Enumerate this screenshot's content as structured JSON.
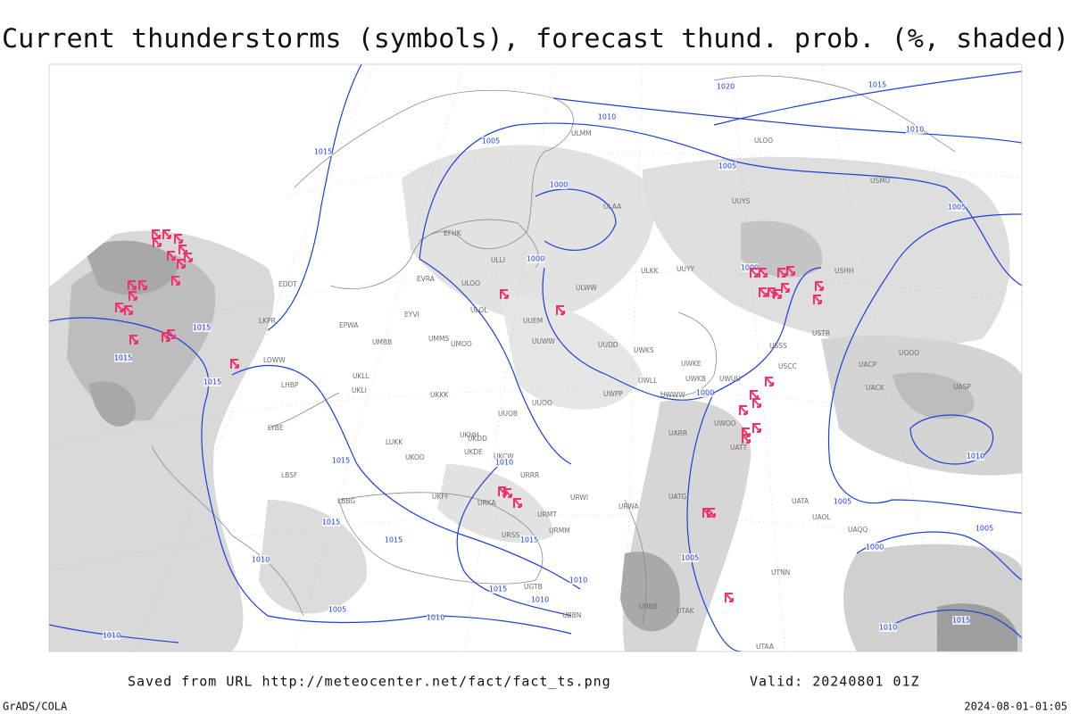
{
  "title": "Current thunderstorms (symbols), forecast thund. prob. (%, shaded)",
  "isobar_labels": [
    "1020",
    "1015",
    "1010",
    "1010",
    "1005",
    "1005",
    "1015",
    "1000",
    "1005",
    "1000",
    "1000",
    "1015",
    "1015",
    "1015",
    "1000",
    "1010",
    "1015",
    "1015",
    "1015",
    "1015",
    "1010",
    "1015",
    "1010",
    "1010",
    "1005",
    "1010",
    "1010",
    "1005",
    "1005",
    "1000",
    "1005",
    "1010",
    "1010",
    "1015"
  ],
  "stations": [
    "ULMM",
    "ULOO",
    "ULAA",
    "UUYS",
    "USMU",
    "EFHK",
    "ULLI",
    "ULOO",
    "ULOL",
    "UUEM",
    "UUWW",
    "EVRA",
    "EYVI",
    "UMMS",
    "UMOO",
    "ULWW",
    "ULKK",
    "UUYY",
    "UUDD",
    "UWKS",
    "UWKE",
    "UWUU",
    "UWKB",
    "UWLL",
    "UWWW",
    "UWPP",
    "UUOO",
    "UUOB",
    "UKHH",
    "UKKK",
    "UKDD",
    "UKDE",
    "UKCW",
    "USSS",
    "USCC",
    "USTR",
    "USHH",
    "UOOO",
    "UACP",
    "UACK",
    "UASP",
    "UATT",
    "UWOO",
    "UARR",
    "UATG",
    "UATA",
    "UAOL",
    "UAQQ",
    "UTNN",
    "UTAA",
    "URRR",
    "URWI",
    "URWA",
    "URMT",
    "URMM",
    "URSS",
    "UGTB",
    "UBBB",
    "UBBN",
    "UTAK",
    "LBBG",
    "LBSF",
    "LYBE",
    "LHBP",
    "LOWW",
    "LKPR",
    "EDDT",
    "EPWA",
    "UMBB",
    "UKLL",
    "UKLI",
    "LUKK",
    "UKOO",
    "UKFF",
    "URKA"
  ],
  "footer": {
    "source": "Saved from URL http://meteocenter.net/fact/fact_ts.png",
    "valid": "Valid: 20240801 01Z",
    "credit": "GrADS/COLA",
    "timestamp": "2024-08-01-01:05"
  }
}
